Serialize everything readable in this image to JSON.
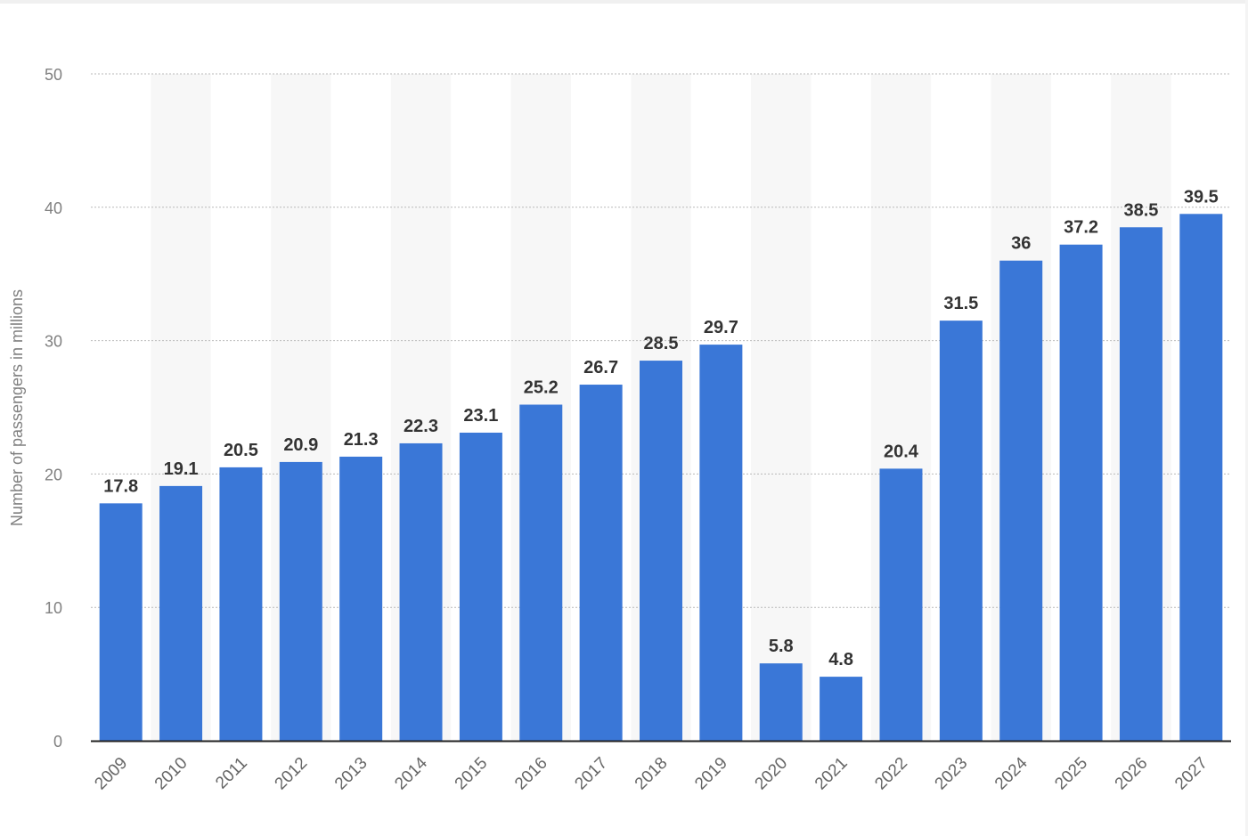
{
  "chart_data": {
    "type": "bar",
    "title": "",
    "xlabel": "",
    "ylabel": "Number of passengers in millions",
    "categories": [
      "2009",
      "2010",
      "2011",
      "2012",
      "2013",
      "2014",
      "2015",
      "2016",
      "2017",
      "2018",
      "2019",
      "2020",
      "2021",
      "2022",
      "2023",
      "2024",
      "2025",
      "2026",
      "2027"
    ],
    "values": [
      17.8,
      19.1,
      20.5,
      20.9,
      21.3,
      22.3,
      23.1,
      25.2,
      26.7,
      28.5,
      29.7,
      5.8,
      4.8,
      20.4,
      31.5,
      36,
      37.2,
      38.5,
      39.5
    ],
    "value_labels": [
      "17.8",
      "19.1",
      "20.5",
      "20.9",
      "21.3",
      "22.3",
      "23.1",
      "25.2",
      "26.7",
      "28.5",
      "29.7",
      "5.8",
      "4.8",
      "20.4",
      "31.5",
      "36",
      "37.2",
      "38.5",
      "39.5"
    ],
    "ylim": [
      0,
      50
    ],
    "yticks": [
      "0",
      "10",
      "20",
      "30",
      "40",
      "50"
    ],
    "grid": true,
    "legend": "none",
    "bar_color": "#3a77d7",
    "band_color": "#f7f7f7"
  }
}
